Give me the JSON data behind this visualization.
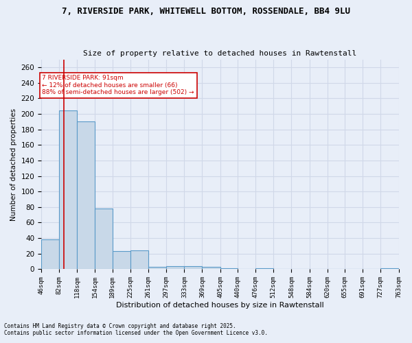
{
  "title": "7, RIVERSIDE PARK, WHITEWELL BOTTOM, ROSSENDALE, BB4 9LU",
  "subtitle": "Size of property relative to detached houses in Rawtenstall",
  "xlabel": "Distribution of detached houses by size in Rawtenstall",
  "ylabel": "Number of detached properties",
  "bar_values": [
    38,
    204,
    190,
    78,
    23,
    24,
    3,
    4,
    4,
    3,
    1,
    0,
    1,
    0,
    0,
    0,
    0,
    0,
    0,
    1
  ],
  "bin_edges": [
    46,
    82,
    118,
    154,
    189,
    225,
    261,
    297,
    333,
    369,
    405,
    440,
    476,
    512,
    548,
    584,
    620,
    655,
    691,
    727,
    763
  ],
  "tick_labels": [
    "46sqm",
    "82sqm",
    "118sqm",
    "154sqm",
    "189sqm",
    "225sqm",
    "261sqm",
    "297sqm",
    "333sqm",
    "369sqm",
    "405sqm",
    "440sqm",
    "476sqm",
    "512sqm",
    "548sqm",
    "584sqm",
    "620sqm",
    "655sqm",
    "691sqm",
    "727sqm",
    "763sqm"
  ],
  "bar_color": "#c8d8e8",
  "bar_edge_color": "#5a9ac8",
  "grid_color": "#d0d8e8",
  "background_color": "#e8eef8",
  "vline_x": 91,
  "vline_color": "#cc0000",
  "ylim": [
    0,
    270
  ],
  "yticks": [
    0,
    20,
    40,
    60,
    80,
    100,
    120,
    140,
    160,
    180,
    200,
    220,
    240,
    260
  ],
  "annotation_text": "7 RIVERSIDE PARK: 91sqm\n← 12% of detached houses are smaller (66)\n88% of semi-detached houses are larger (502) →",
  "annotation_color": "#cc0000",
  "footer_line1": "Contains HM Land Registry data © Crown copyright and database right 2025.",
  "footer_line2": "Contains public sector information licensed under the Open Government Licence v3.0."
}
